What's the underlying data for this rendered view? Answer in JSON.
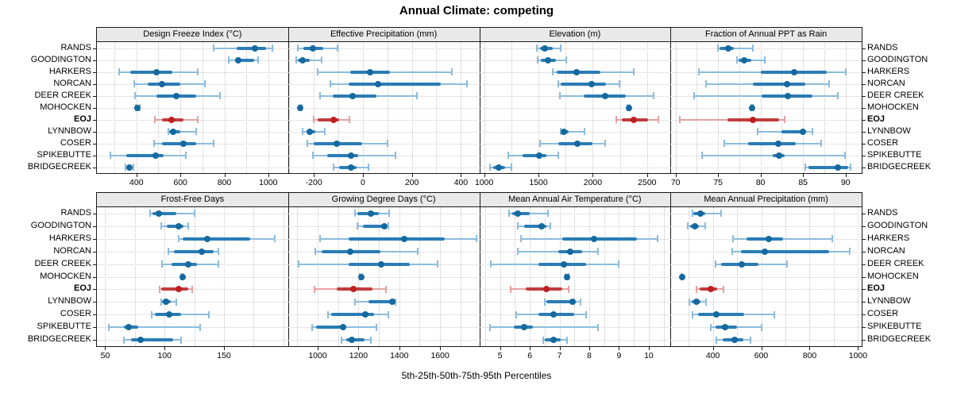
{
  "title": "Annual Climate: competing",
  "xlabel": "5th-25th-50th-75th-95th Percentiles",
  "stations": [
    "RANDS",
    "GOODINGTON",
    "HARKERS",
    "NORCAN",
    "DEER CREEK",
    "MOHOCKEN",
    "EOJ",
    "LYNNBOW",
    "COSER",
    "SPIKEBUTTE",
    "BRIDGECREEK"
  ],
  "highlight_station": "EOJ",
  "colors": {
    "normal": {
      "dot": "#14699e",
      "bar": "#2a7cb5",
      "whisker": "#8cbcdc"
    },
    "highlight": {
      "dot": "#bf1f1f",
      "bar": "#c03c3c",
      "whisker": "#e5a0a0"
    },
    "strip_bg": "#e9e9e9",
    "border": "#1a1a1a",
    "grid": "#c8c8c8"
  },
  "chart_data": [
    {
      "type": "scatter",
      "subtype": "percentile-dot-whisker",
      "title": "Design Freeze Index (°C)",
      "ticks": [
        400,
        600,
        800,
        1000
      ],
      "minor_step": 100,
      "xlim": [
        220,
        1090
      ],
      "values": [
        [
          750,
          855,
          940,
          990,
          1020
        ],
        [
          820,
          850,
          862,
          935,
          955
        ],
        [
          320,
          370,
          490,
          565,
          680
        ],
        [
          390,
          450,
          515,
          600,
          710
        ],
        [
          395,
          490,
          580,
          670,
          780
        ],
        [
          396,
          400,
          405,
          410,
          416
        ],
        [
          485,
          515,
          560,
          615,
          680
        ],
        [
          545,
          550,
          567,
          600,
          673
        ],
        [
          480,
          515,
          615,
          672,
          750
        ],
        [
          280,
          355,
          487,
          522,
          626
        ],
        [
          349,
          357,
          367,
          377,
          385
        ]
      ]
    },
    {
      "type": "scatter",
      "subtype": "percentile-dot-whisker",
      "title": "Effective Precipitation (mm)",
      "ticks": [
        -200,
        0,
        200,
        400
      ],
      "minor_step": 100,
      "xlim": [
        -305,
        475
      ],
      "values": [
        [
          -265,
          -243,
          -205,
          -161,
          -104
        ],
        [
          -273,
          -265,
          -247,
          -216,
          -167
        ],
        [
          -183,
          -52,
          29,
          111,
          363
        ],
        [
          -131,
          -58,
          62,
          319,
          426
        ],
        [
          -173,
          -123,
          -42,
          57,
          220
        ],
        [
          -258,
          -256,
          -254,
          -252,
          -250
        ],
        [
          -202,
          -183,
          -120,
          -96,
          -55
        ],
        [
          -247,
          -231,
          -216,
          -194,
          -156
        ],
        [
          -225,
          -200,
          -105,
          -3,
          100
        ],
        [
          -205,
          -145,
          -47,
          -20,
          133
        ],
        [
          -120,
          -96,
          -47,
          -25,
          24
        ]
      ]
    },
    {
      "type": "scatter",
      "subtype": "percentile-dot-whisker",
      "title": "Elevation (m)",
      "ticks": [
        1000,
        1500,
        2000,
        2500
      ],
      "minor_step": 250,
      "xlim": [
        955,
        2715
      ],
      "values": [
        [
          1483,
          1512,
          1561,
          1634,
          1707
        ],
        [
          1493,
          1524,
          1590,
          1659,
          1756
        ],
        [
          1634,
          1671,
          1854,
          2073,
          2378
        ],
        [
          1683,
          1707,
          1988,
          2122,
          2244
        ],
        [
          1695,
          1915,
          2117,
          2305,
          2561
        ],
        [
          2320,
          2325,
          2330,
          2335,
          2340
        ],
        [
          2215,
          2268,
          2378,
          2512,
          2605
        ],
        [
          1707,
          1712,
          1737,
          1780,
          1922
        ],
        [
          1512,
          1683,
          1861,
          2000,
          2117
        ],
        [
          1224,
          1354,
          1507,
          1573,
          1683
        ],
        [
          1053,
          1084,
          1133,
          1195,
          1248
        ]
      ]
    },
    {
      "type": "scatter",
      "subtype": "percentile-dot-whisker",
      "title": "Fraction of Annual PPT as Rain",
      "ticks": [
        70,
        75,
        80,
        85,
        90
      ],
      "minor_step": 2.5,
      "xlim": [
        69.4,
        91.9
      ],
      "values": [
        [
          75.0,
          75.2,
          76.2,
          76.9,
          79.1
        ],
        [
          77.2,
          77.4,
          78.1,
          78.9,
          80.5
        ],
        [
          72.7,
          80.0,
          84.0,
          87.8,
          90.0
        ],
        [
          73.6,
          79.1,
          83.1,
          85.3,
          88.1
        ],
        [
          72.2,
          80.1,
          83.2,
          86.1,
          89.1
        ],
        [
          78.9,
          78.95,
          79.0,
          79.05,
          79.1
        ],
        [
          70.5,
          76.1,
          79.1,
          82.2,
          82.8
        ],
        [
          79.7,
          82.5,
          85.0,
          85.3,
          86.1
        ],
        [
          75.7,
          78.5,
          82.1,
          84.1,
          87.1
        ],
        [
          73.1,
          81.4,
          82.2,
          82.8,
          89.9
        ],
        [
          85.3,
          85.6,
          89.1,
          90.3,
          90.6
        ]
      ]
    },
    {
      "type": "scatter",
      "subtype": "percentile-dot-whisker",
      "title": "Frost-Free Days",
      "ticks": [
        50,
        100,
        150
      ],
      "minor_step": 25,
      "xlim": [
        43,
        204
      ],
      "values": [
        [
          88,
          90,
          95,
          110,
          125
        ],
        [
          97,
          102,
          112,
          116,
          120
        ],
        [
          112,
          115,
          136,
          172,
          193
        ],
        [
          103,
          108,
          131,
          141,
          145
        ],
        [
          98,
          106,
          120,
          127,
          145
        ],
        [
          114,
          114.5,
          115,
          115.5,
          116
        ],
        [
          96,
          97,
          112,
          120,
          123
        ],
        [
          97,
          98,
          101,
          105,
          110
        ],
        [
          89,
          92,
          104,
          114,
          137
        ],
        [
          53,
          66,
          70,
          78,
          130
        ],
        [
          66,
          72,
          80,
          107,
          114
        ]
      ]
    },
    {
      "type": "scatter",
      "subtype": "percentile-dot-whisker",
      "title": "Growing Degree Days (°C)",
      "ticks": [
        1000,
        1200,
        1400,
        1600
      ],
      "minor_step": 100,
      "xlim": [
        855,
        1792
      ],
      "values": [
        [
          1181,
          1194,
          1262,
          1301,
          1351
        ],
        [
          1194,
          1223,
          1327,
          1338,
          1347
        ],
        [
          1011,
          1151,
          1426,
          1622,
          1780
        ],
        [
          990,
          1020,
          1160,
          1308,
          1491
        ],
        [
          906,
          1151,
          1312,
          1452,
          1587
        ],
        [
          1208,
          1211,
          1213,
          1215,
          1218
        ],
        [
          984,
          1092,
          1177,
          1268,
          1334
        ],
        [
          1181,
          1250,
          1367,
          1373,
          1380
        ],
        [
          1050,
          1068,
          1233,
          1275,
          1347
        ],
        [
          971,
          993,
          1125,
          1140,
          1288
        ],
        [
          1115,
          1141,
          1168,
          1229,
          1259
        ]
      ]
    },
    {
      "type": "scatter",
      "subtype": "percentile-dot-whisker",
      "title": "Mean Annual Air Temperature (°C)",
      "ticks": [
        5,
        6,
        7,
        8,
        9,
        10
      ],
      "minor_step": 0.5,
      "xlim": [
        4.3,
        10.73
      ],
      "values": [
        [
          5.3,
          5.4,
          5.6,
          6.0,
          6.6
        ],
        [
          5.6,
          5.8,
          6.4,
          6.55,
          6.7
        ],
        [
          5.7,
          7.1,
          8.15,
          9.6,
          10.3
        ],
        [
          5.6,
          6.95,
          7.35,
          7.75,
          8.3
        ],
        [
          4.7,
          6.3,
          7.15,
          7.9,
          9.0
        ],
        [
          7.2,
          7.22,
          7.25,
          7.28,
          7.3
        ],
        [
          5.35,
          5.85,
          6.55,
          7.1,
          7.3
        ],
        [
          6.5,
          6.55,
          7.45,
          7.55,
          7.7
        ],
        [
          5.55,
          6.3,
          6.8,
          7.5,
          7.9
        ],
        [
          4.65,
          5.45,
          5.8,
          6.1,
          8.3
        ],
        [
          6.45,
          6.5,
          6.8,
          7.05,
          7.25
        ]
      ]
    },
    {
      "type": "scatter",
      "subtype": "percentile-dot-whisker",
      "title": "Mean Annual Precipitation (mm)",
      "ticks": [
        400,
        600,
        800,
        1000
      ],
      "minor_step": 100,
      "xlim": [
        225,
        1015
      ],
      "values": [
        [
          315,
          320,
          349,
          369,
          433
        ],
        [
          298,
          306,
          325,
          342,
          367
        ],
        [
          485,
          540,
          630,
          690,
          895
        ],
        [
          480,
          515,
          615,
          880,
          965
        ],
        [
          410,
          435,
          520,
          590,
          705
        ],
        [
          271,
          272,
          273,
          274,
          275
        ],
        [
          331,
          345,
          393,
          418,
          444
        ],
        [
          304,
          313,
          331,
          349,
          372
        ],
        [
          315,
          340,
          415,
          530,
          655
        ],
        [
          390,
          410,
          450,
          500,
          600
        ],
        [
          415,
          440,
          490,
          525,
          555
        ]
      ]
    }
  ]
}
